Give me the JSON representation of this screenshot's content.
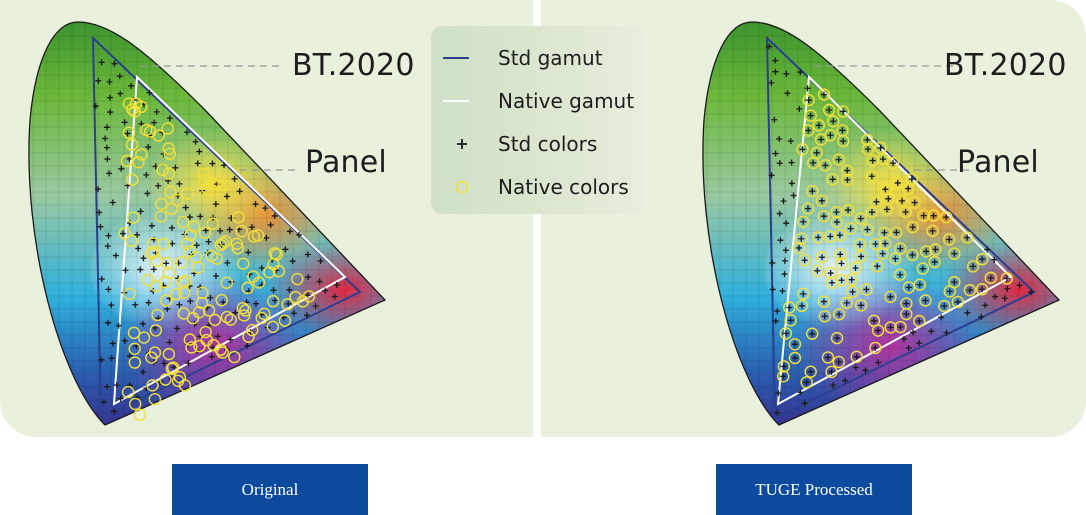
{
  "left_figure": {
    "labels": {
      "bt2020": "BT.2020",
      "panel": "Panel"
    }
  },
  "right_figure": {
    "labels": {
      "bt2020": "BT.2020",
      "panel": "Panel"
    }
  },
  "legend": {
    "items": [
      {
        "label": "Std gamut",
        "symbol": "blue-line",
        "color": "#2a3f8f"
      },
      {
        "label": "Native gamut",
        "symbol": "white-line",
        "color": "#ffffff"
      },
      {
        "label": "Std colors",
        "symbol": "plus",
        "color": "#1a1a1a"
      },
      {
        "label": "Native colors",
        "symbol": "circle",
        "color": "#f2e03a"
      }
    ]
  },
  "captions": {
    "left": "Original",
    "right": "TUGE Processed"
  },
  "colors": {
    "panel_bg": "#e9f0dc",
    "caption_bg": "#0b4a9c",
    "std_gamut": "#2a3f8f",
    "native_gamut": "#ffffff",
    "native_marker": "#f2e03a"
  }
}
